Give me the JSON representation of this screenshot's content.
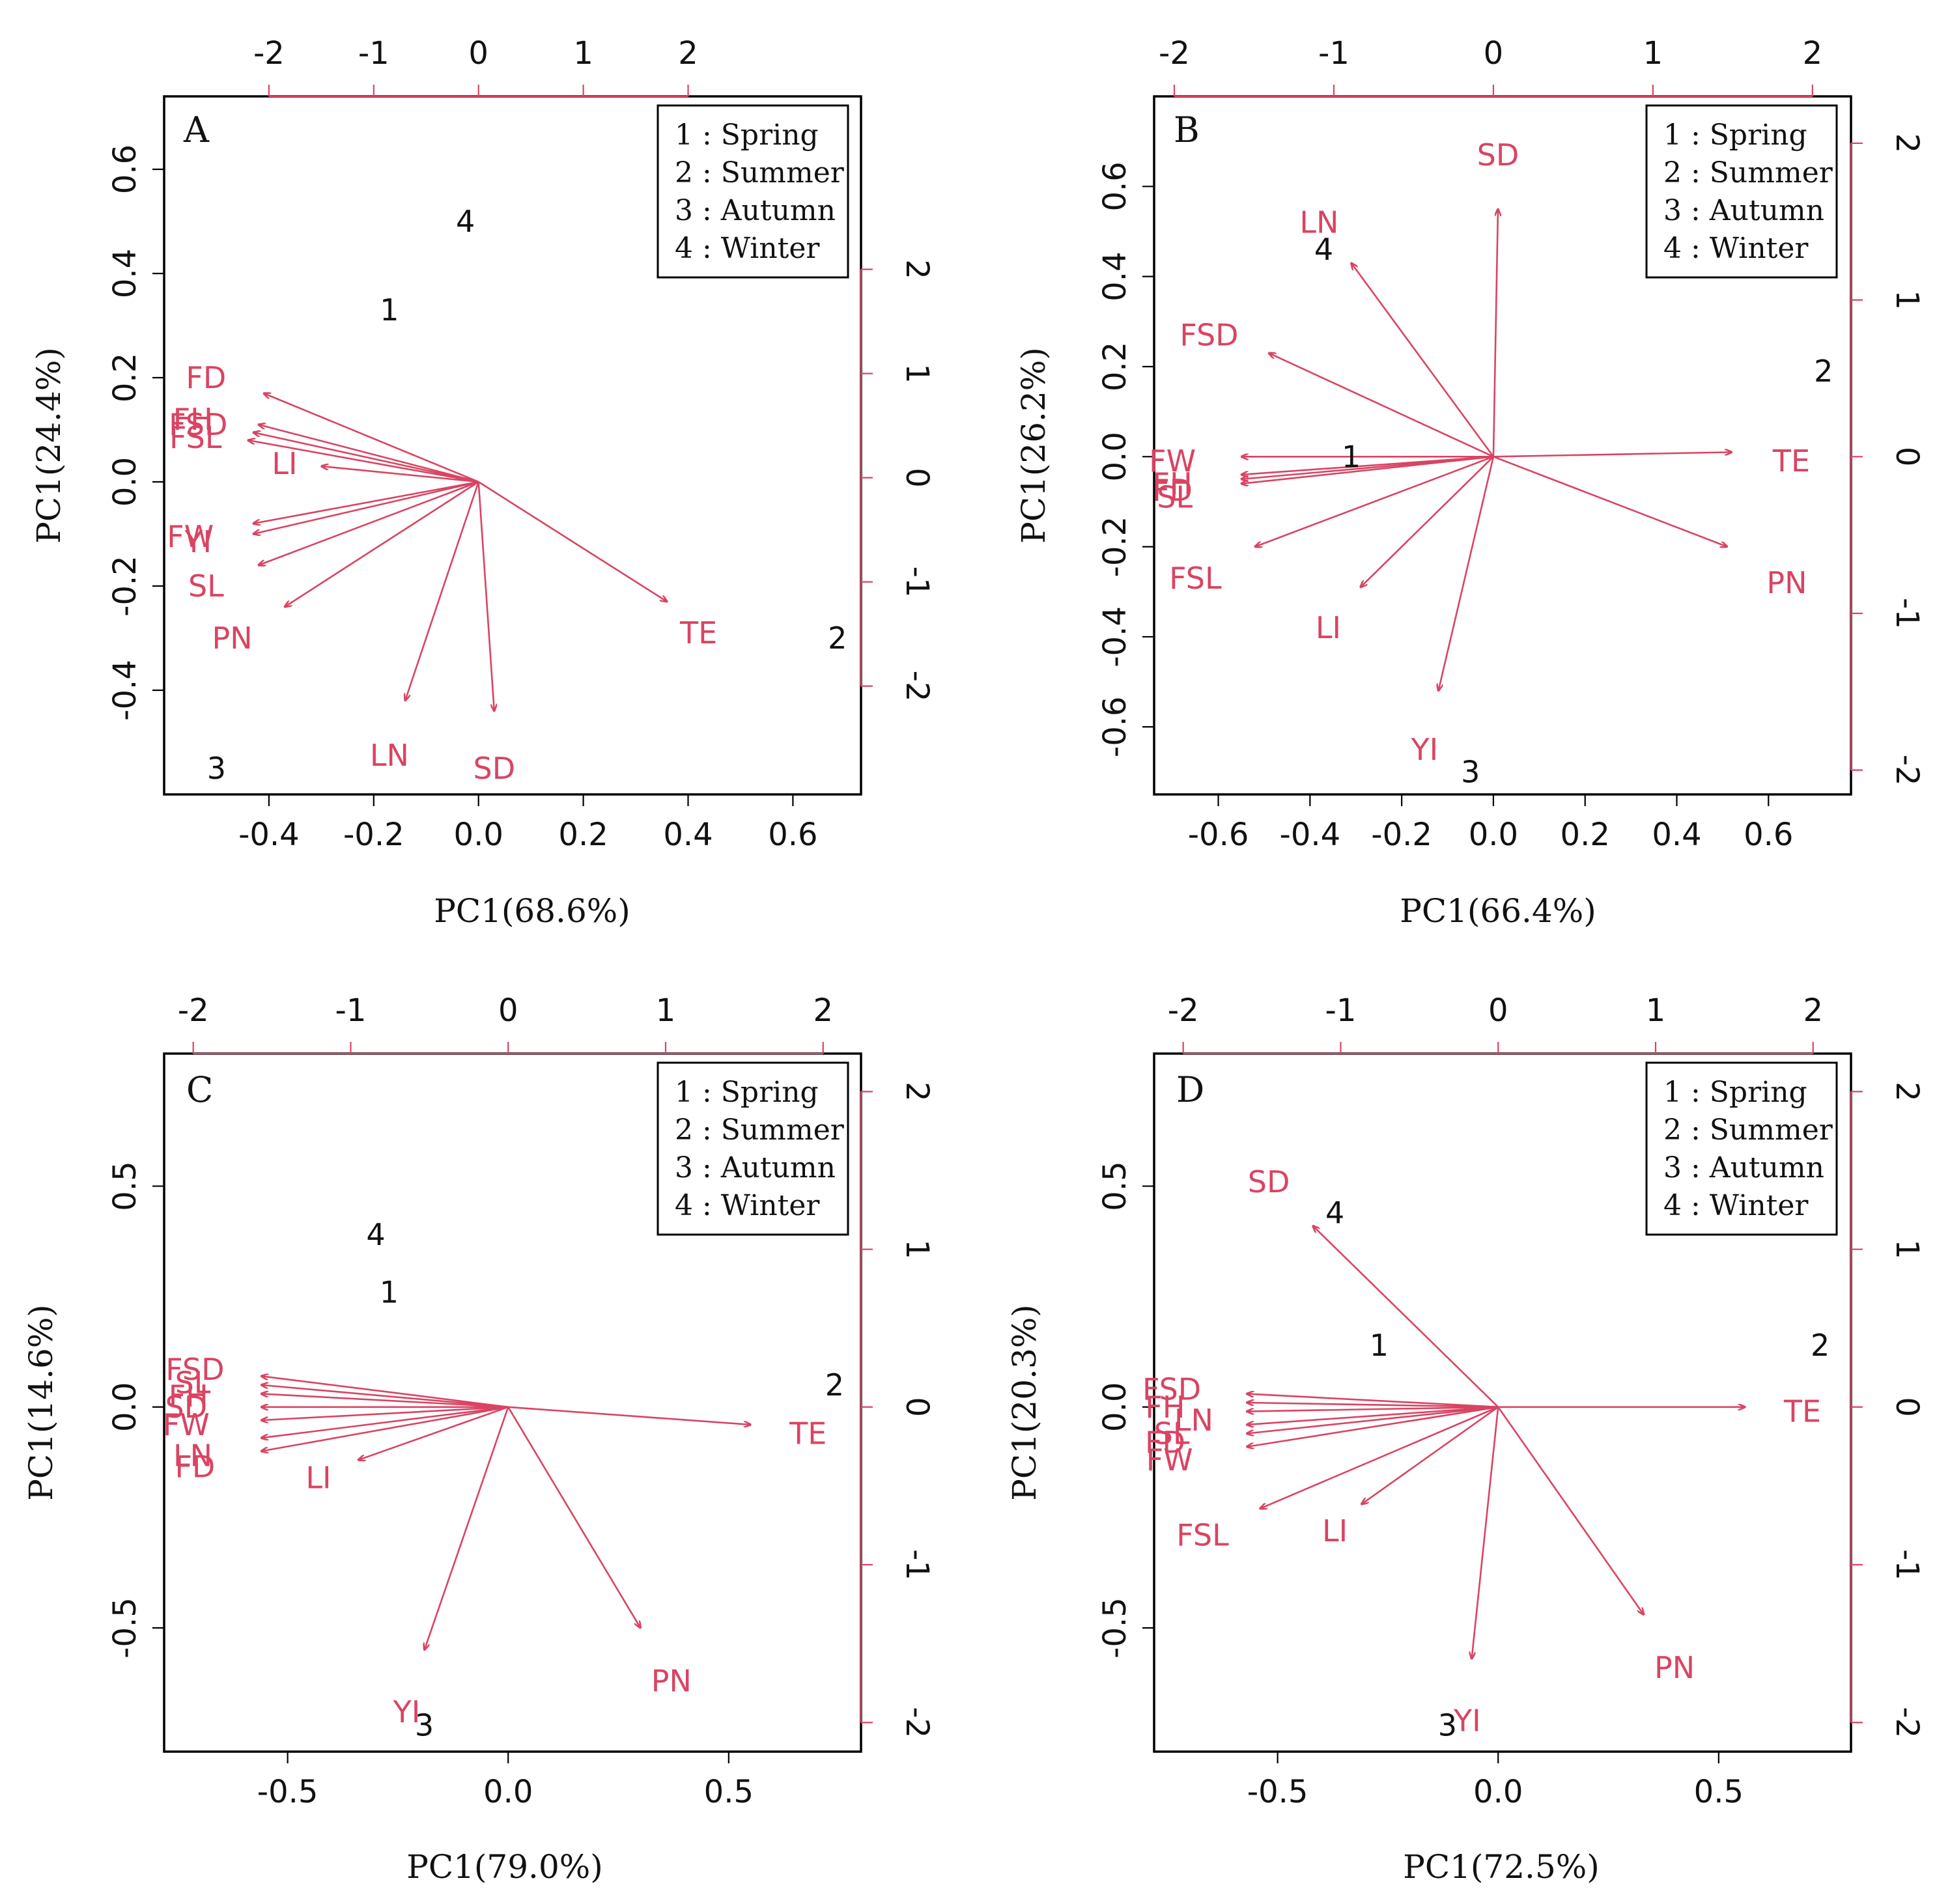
{
  "figure": {
    "background": "#ffffff",
    "arrow_color": "#d94462",
    "text_color": "#111111"
  },
  "legend_items": [
    "1 : Spring",
    "2 : Summer",
    "3 : Autumn",
    "4 : Winter"
  ],
  "chart_data": [
    {
      "type": "scatter",
      "panel": "A",
      "xlabel": "PC1(68.6%)",
      "ylabel": "PC1(24.4%)",
      "xlim": [
        -0.6,
        0.73
      ],
      "ylim": [
        -0.6,
        0.74
      ],
      "xticks": [
        -0.4,
        -0.2,
        0.0,
        0.2,
        0.4,
        0.6
      ],
      "xtick_labels": [
        "-0.4",
        "-0.2",
        "0.0",
        "0.2",
        "0.4",
        "0.6"
      ],
      "yticks": [
        -0.4,
        -0.2,
        0.0,
        0.2,
        0.4,
        0.6
      ],
      "ytick_labels": [
        "-0.4",
        "-0.2",
        "0.0",
        "0.2",
        "0.4",
        "0.6"
      ],
      "top_ticks": [
        -2,
        -1,
        0,
        1,
        2
      ],
      "top_tick_labels": [
        "-2",
        "-1",
        "0",
        "1",
        "2"
      ],
      "right_ticks": [
        -2,
        -1,
        0,
        1,
        2
      ],
      "right_tick_labels": [
        "-2",
        "-1",
        "0",
        "1",
        "2"
      ],
      "right_tick_offset": 0.008,
      "score_scale": 0.2,
      "points": [
        {
          "label": "1",
          "x": -0.17,
          "y": 0.33
        },
        {
          "label": "2",
          "x": 0.685,
          "y": -0.3
        },
        {
          "label": "3",
          "x": -0.5,
          "y": -0.55
        },
        {
          "label": "4",
          "x": -0.025,
          "y": 0.5
        }
      ],
      "loadings": [
        {
          "name": "FD",
          "x": -0.41,
          "y": 0.17,
          "lx": -0.52,
          "ly": 0.2
        },
        {
          "name": "FH",
          "x": -0.42,
          "y": 0.11,
          "lx": -0.545,
          "ly": 0.12
        },
        {
          "name": "FSD",
          "x": -0.43,
          "y": 0.095,
          "lx": -0.535,
          "ly": 0.11
        },
        {
          "name": "FSL",
          "x": -0.44,
          "y": 0.08,
          "lx": -0.54,
          "ly": 0.085
        },
        {
          "name": "LI",
          "x": -0.3,
          "y": 0.03,
          "lx": -0.37,
          "ly": 0.035
        },
        {
          "name": "FW",
          "x": -0.43,
          "y": -0.08,
          "lx": -0.55,
          "ly": -0.105
        },
        {
          "name": "YI",
          "x": -0.43,
          "y": -0.1,
          "lx": -0.535,
          "ly": -0.115
        },
        {
          "name": "SL",
          "x": -0.42,
          "y": -0.16,
          "lx": -0.52,
          "ly": -0.2
        },
        {
          "name": "PN",
          "x": -0.37,
          "y": -0.24,
          "lx": -0.47,
          "ly": -0.3
        },
        {
          "name": "LN",
          "x": -0.14,
          "y": -0.42,
          "lx": -0.17,
          "ly": -0.525
        },
        {
          "name": "SD",
          "x": 0.03,
          "y": -0.44,
          "lx": 0.03,
          "ly": -0.55
        },
        {
          "name": "TE",
          "x": 0.36,
          "y": -0.23,
          "lx": 0.42,
          "ly": -0.29
        }
      ]
    },
    {
      "type": "scatter",
      "panel": "B",
      "xlabel": "PC1(66.4%)",
      "ylabel": "PC1(26.2%)",
      "xlim": [
        -0.74,
        0.78
      ],
      "ylim": [
        -0.75,
        0.8
      ],
      "xticks": [
        -0.6,
        -0.4,
        -0.2,
        0.0,
        0.2,
        0.4,
        0.6
      ],
      "xtick_labels": [
        "-0.6",
        "-0.4",
        "-0.2",
        "0.0",
        "0.2",
        "0.4",
        "0.6"
      ],
      "yticks": [
        -0.6,
        -0.4,
        -0.2,
        0.0,
        0.2,
        0.4,
        0.6
      ],
      "ytick_labels": [
        "-0.6",
        "-0.4",
        "-0.2",
        "0.0",
        "0.2",
        "0.4",
        "0.6"
      ],
      "top_ticks": [
        -2,
        -1,
        0,
        1,
        2
      ],
      "top_tick_labels": [
        "-2",
        "-1",
        "0",
        "1",
        "2"
      ],
      "right_ticks": [
        -2,
        -1,
        0,
        1,
        2
      ],
      "right_tick_labels": [
        "-2",
        "-1",
        "0",
        "1",
        "2"
      ],
      "right_tick_offset": 0.0,
      "score_scale": 0.348,
      "points": [
        {
          "label": "1",
          "x": -0.31,
          "y": 0.0
        },
        {
          "label": "2",
          "x": 0.72,
          "y": 0.19
        },
        {
          "label": "3",
          "x": -0.05,
          "y": -0.7
        },
        {
          "label": "4",
          "x": -0.37,
          "y": 0.46
        }
      ],
      "loadings": [
        {
          "name": "SD",
          "x": 0.01,
          "y": 0.55,
          "lx": 0.01,
          "ly": 0.67
        },
        {
          "name": "LN",
          "x": -0.31,
          "y": 0.43,
          "lx": -0.38,
          "ly": 0.52
        },
        {
          "name": "FSD",
          "x": -0.49,
          "y": 0.23,
          "lx": -0.62,
          "ly": 0.27
        },
        {
          "name": "FW",
          "x": -0.55,
          "y": 0.0,
          "lx": -0.7,
          "ly": -0.01
        },
        {
          "name": "FH",
          "x": -0.55,
          "y": -0.04,
          "lx": -0.7,
          "ly": -0.06
        },
        {
          "name": "FD",
          "x": -0.55,
          "y": -0.05,
          "lx": -0.7,
          "ly": -0.075
        },
        {
          "name": "SL",
          "x": -0.55,
          "y": -0.06,
          "lx": -0.695,
          "ly": -0.09
        },
        {
          "name": "FSL",
          "x": -0.52,
          "y": -0.2,
          "lx": -0.65,
          "ly": -0.27
        },
        {
          "name": "LI",
          "x": -0.29,
          "y": -0.29,
          "lx": -0.36,
          "ly": -0.38
        },
        {
          "name": "YI",
          "x": -0.12,
          "y": -0.52,
          "lx": -0.15,
          "ly": -0.65
        },
        {
          "name": "TE",
          "x": 0.52,
          "y": 0.01,
          "lx": 0.65,
          "ly": -0.01
        },
        {
          "name": "PN",
          "x": 0.51,
          "y": -0.2,
          "lx": 0.64,
          "ly": -0.28
        }
      ]
    },
    {
      "type": "scatter",
      "panel": "C",
      "xlabel": "PC1(79.0%)",
      "ylabel": "PC1(14.6%)",
      "xlim": [
        -0.78,
        0.8
      ],
      "ylim": [
        -0.78,
        0.8
      ],
      "xticks": [
        -0.5,
        0.0,
        0.5
      ],
      "xtick_labels": [
        "-0.5",
        "0.0",
        "0.5"
      ],
      "yticks": [
        -0.5,
        0.0,
        0.5
      ],
      "ytick_labels": [
        "-0.5",
        "0.0",
        "0.5"
      ],
      "top_ticks": [
        -2,
        -1,
        0,
        1,
        2
      ],
      "top_tick_labels": [
        "-2",
        "-1",
        "0",
        "1",
        "2"
      ],
      "right_ticks": [
        -2,
        -1,
        0,
        1,
        2
      ],
      "right_tick_labels": [
        "-2",
        "-1",
        "0",
        "1",
        "2"
      ],
      "right_tick_offset": 0.0,
      "score_scale": 0.357,
      "points": [
        {
          "label": "1",
          "x": -0.27,
          "y": 0.26
        },
        {
          "label": "2",
          "x": 0.74,
          "y": 0.05
        },
        {
          "label": "3",
          "x": -0.19,
          "y": -0.72
        },
        {
          "label": "4",
          "x": -0.3,
          "y": 0.39
        }
      ],
      "loadings": [
        {
          "name": "FSD",
          "x": -0.56,
          "y": 0.07,
          "lx": -0.71,
          "ly": 0.085
        },
        {
          "name": "SL",
          "x": -0.56,
          "y": 0.05,
          "lx": -0.715,
          "ly": 0.055
        },
        {
          "name": "FH",
          "x": -0.56,
          "y": 0.03,
          "lx": -0.725,
          "ly": 0.025
        },
        {
          "name": "SD",
          "x": -0.56,
          "y": 0.0,
          "lx": -0.73,
          "ly": 0.0
        },
        {
          "name": "FW",
          "x": -0.56,
          "y": -0.03,
          "lx": -0.73,
          "ly": -0.04
        },
        {
          "name": "LN",
          "x": -0.56,
          "y": -0.07,
          "lx": -0.715,
          "ly": -0.11
        },
        {
          "name": "FD",
          "x": -0.56,
          "y": -0.1,
          "lx": -0.71,
          "ly": -0.135
        },
        {
          "name": "LI",
          "x": -0.34,
          "y": -0.12,
          "lx": -0.43,
          "ly": -0.16
        },
        {
          "name": "YI",
          "x": -0.19,
          "y": -0.55,
          "lx": -0.23,
          "ly": -0.69
        },
        {
          "name": "PN",
          "x": 0.3,
          "y": -0.5,
          "lx": 0.37,
          "ly": -0.62
        },
        {
          "name": "TE",
          "x": 0.55,
          "y": -0.04,
          "lx": 0.68,
          "ly": -0.06
        }
      ]
    },
    {
      "type": "scatter",
      "panel": "D",
      "xlabel": "PC1(72.5%)",
      "ylabel": "PC1(20.3%)",
      "xlim": [
        -0.78,
        0.8
      ],
      "ylim": [
        -0.78,
        0.8
      ],
      "xticks": [
        -0.5,
        0.0,
        0.5
      ],
      "xtick_labels": [
        "-0.5",
        "0.0",
        "0.5"
      ],
      "yticks": [
        -0.5,
        0.0,
        0.5
      ],
      "ytick_labels": [
        "-0.5",
        "0.0",
        "0.5"
      ],
      "top_ticks": [
        -2,
        -1,
        0,
        1,
        2
      ],
      "top_tick_labels": [
        "-2",
        "-1",
        "0",
        "1",
        "2"
      ],
      "right_ticks": [
        -2,
        -1,
        0,
        1,
        2
      ],
      "right_tick_labels": [
        "-2",
        "-1",
        "0",
        "1",
        "2"
      ],
      "right_tick_offset": 0.0,
      "score_scale": 0.357,
      "points": [
        {
          "label": "1",
          "x": -0.27,
          "y": 0.14
        },
        {
          "label": "2",
          "x": 0.73,
          "y": 0.14
        },
        {
          "label": "3",
          "x": -0.115,
          "y": -0.72
        },
        {
          "label": "4",
          "x": -0.37,
          "y": 0.44
        }
      ],
      "loadings": [
        {
          "name": "SD",
          "x": -0.42,
          "y": 0.41,
          "lx": -0.52,
          "ly": 0.51
        },
        {
          "name": "FSD",
          "x": -0.57,
          "y": 0.03,
          "lx": -0.74,
          "ly": 0.04
        },
        {
          "name": "FH",
          "x": -0.57,
          "y": 0.01,
          "lx": -0.755,
          "ly": 0.0
        },
        {
          "name": "LN",
          "x": -0.57,
          "y": -0.01,
          "lx": -0.69,
          "ly": -0.03
        },
        {
          "name": "SL",
          "x": -0.57,
          "y": -0.04,
          "lx": -0.74,
          "ly": -0.06
        },
        {
          "name": "FD",
          "x": -0.57,
          "y": -0.06,
          "lx": -0.755,
          "ly": -0.08
        },
        {
          "name": "FW",
          "x": -0.57,
          "y": -0.09,
          "lx": -0.745,
          "ly": -0.12
        },
        {
          "name": "FSL",
          "x": -0.54,
          "y": -0.23,
          "lx": -0.67,
          "ly": -0.29
        },
        {
          "name": "LI",
          "x": -0.31,
          "y": -0.22,
          "lx": -0.37,
          "ly": -0.28
        },
        {
          "name": "YI",
          "x": -0.06,
          "y": -0.57,
          "lx": -0.07,
          "ly": -0.71
        },
        {
          "name": "PN",
          "x": 0.33,
          "y": -0.47,
          "lx": 0.4,
          "ly": -0.59
        },
        {
          "name": "TE",
          "x": 0.56,
          "y": 0.0,
          "lx": 0.69,
          "ly": -0.01
        }
      ]
    }
  ]
}
